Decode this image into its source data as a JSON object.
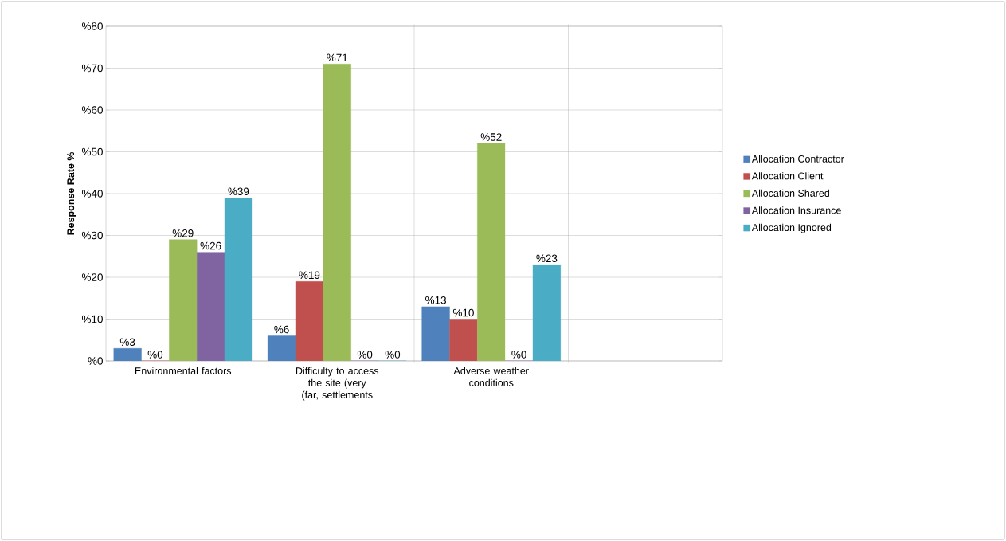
{
  "chart_data": {
    "type": "bar",
    "ylabel": "Response Rate %",
    "categories": [
      "Environmental factors",
      "Difficulty to access the site (very (far, settlements",
      "Adverse weather conditions",
      null
    ],
    "series": [
      {
        "name": "Allocation Contractor",
        "color": "#4f81bd",
        "values": [
          3,
          6,
          13,
          null
        ],
        "value_labels": [
          "%3",
          "%6",
          "%13",
          null
        ]
      },
      {
        "name": "Allocation Client",
        "color": "#c0504d",
        "values": [
          0,
          19,
          10,
          null
        ],
        "value_labels": [
          "%0",
          "%19",
          "%10",
          null
        ]
      },
      {
        "name": "Allocation Shared",
        "color": "#9bbb59",
        "values": [
          29,
          71,
          52,
          null
        ],
        "value_labels": [
          "%29",
          "%71",
          "%52",
          null
        ]
      },
      {
        "name": "Allocation Insurance",
        "color": "#8064a2",
        "values": [
          26,
          0,
          0,
          null
        ],
        "value_labels": [
          "%26",
          "%0",
          "%0",
          null
        ]
      },
      {
        "name": "Allocation Ignored",
        "color": "#4bacc6",
        "values": [
          39,
          0,
          23,
          null
        ],
        "value_labels": [
          "%39",
          "%0",
          "%23",
          null
        ]
      }
    ],
    "ylim": [
      0,
      80
    ],
    "yticks": [
      {
        "value": 0,
        "label": "%0"
      },
      {
        "value": 10,
        "label": "%10"
      },
      {
        "value": 20,
        "label": "%20"
      },
      {
        "value": 30,
        "label": "%30"
      },
      {
        "value": 40,
        "label": "%40"
      },
      {
        "value": 50,
        "label": "%50"
      },
      {
        "value": 60,
        "label": "%60"
      },
      {
        "value": 70,
        "label": "%70"
      },
      {
        "value": 80,
        "label": "%80"
      }
    ],
    "grid": true,
    "legend": "right"
  }
}
